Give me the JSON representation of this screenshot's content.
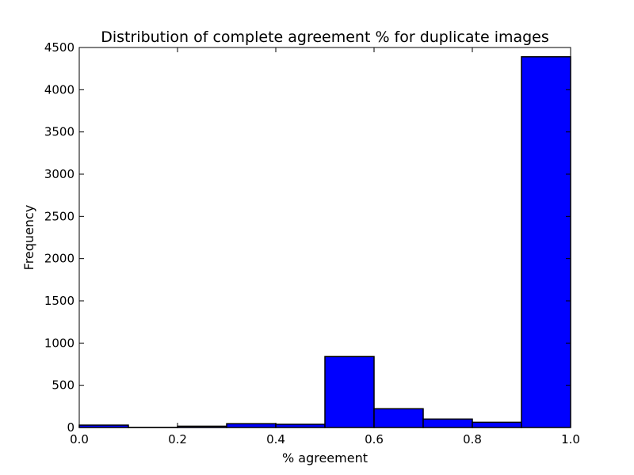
{
  "chart_data": {
    "type": "bar",
    "title": "Distribution of complete agreement % for duplicate images",
    "xlabel": "% agreement",
    "ylabel": "Frequency",
    "xlim": [
      0.0,
      1.0
    ],
    "ylim": [
      0,
      4500
    ],
    "bar_color": "#0000ff",
    "edge_color": "#000000",
    "grid": false,
    "bins": [
      {
        "x0": 0.0,
        "x1": 0.1,
        "value": 28
      },
      {
        "x0": 0.1,
        "x1": 0.2,
        "value": 2
      },
      {
        "x0": 0.2,
        "x1": 0.3,
        "value": 15
      },
      {
        "x0": 0.3,
        "x1": 0.4,
        "value": 45
      },
      {
        "x0": 0.4,
        "x1": 0.5,
        "value": 38
      },
      {
        "x0": 0.5,
        "x1": 0.6,
        "value": 840
      },
      {
        "x0": 0.6,
        "x1": 0.7,
        "value": 222
      },
      {
        "x0": 0.7,
        "x1": 0.8,
        "value": 100
      },
      {
        "x0": 0.8,
        "x1": 0.9,
        "value": 62
      },
      {
        "x0": 0.9,
        "x1": 1.0,
        "value": 4390
      }
    ],
    "xticks": [
      0.0,
      0.2,
      0.4,
      0.6,
      0.8,
      1.0
    ],
    "xtick_labels": [
      "0.0",
      "0.2",
      "0.4",
      "0.6",
      "0.8",
      "1.0"
    ],
    "yticks": [
      0,
      500,
      1000,
      1500,
      2000,
      2500,
      3000,
      3500,
      4000,
      4500
    ],
    "ytick_labels": [
      "0",
      "500",
      "1000",
      "1500",
      "2000",
      "2500",
      "3000",
      "3500",
      "4000",
      "4500"
    ]
  }
}
